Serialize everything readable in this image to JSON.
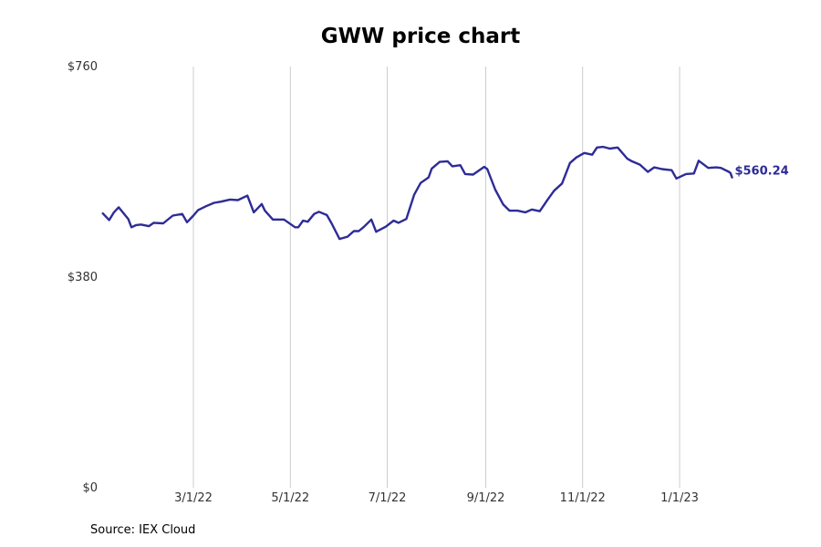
{
  "title": "GWW price chart",
  "source": "Source: IEX Cloud",
  "colors": {
    "line": "#2e2b96",
    "grid": "#c0c0c0",
    "tick_text": "#333333"
  },
  "chart_data": {
    "type": "line",
    "title": "GWW price chart",
    "xlabel": "",
    "ylabel": "",
    "ylim": [
      0,
      760
    ],
    "yticks": [
      {
        "value": 0,
        "label": "$0"
      },
      {
        "value": 380,
        "label": "$380"
      },
      {
        "value": 760,
        "label": "$760"
      }
    ],
    "xlim": [
      "2022-01-03",
      "2023-02-28"
    ],
    "xticks": [
      {
        "date": "2022-03-01",
        "label": "3/1/22"
      },
      {
        "date": "2022-05-01",
        "label": "5/1/22"
      },
      {
        "date": "2022-07-01",
        "label": "7/1/22"
      },
      {
        "date": "2022-09-01",
        "label": "9/1/22"
      },
      {
        "date": "2022-11-01",
        "label": "11/1/22"
      },
      {
        "date": "2023-01-01",
        "label": "1/1/23"
      }
    ],
    "grid": "vertical",
    "end_label": "$560.24",
    "series": [
      {
        "x": [
          "2022-01-03",
          "2022-01-07",
          "2022-01-10",
          "2022-01-13",
          "2022-01-19",
          "2022-01-21",
          "2022-01-24",
          "2022-01-27",
          "2022-02-01",
          "2022-02-04",
          "2022-02-10",
          "2022-02-16",
          "2022-02-22",
          "2022-02-25",
          "2022-03-01",
          "2022-03-04",
          "2022-03-09",
          "2022-03-14",
          "2022-03-18",
          "2022-03-24",
          "2022-03-29",
          "2022-04-04",
          "2022-04-08",
          "2022-04-13",
          "2022-04-15",
          "2022-04-20",
          "2022-04-27",
          "2022-05-04",
          "2022-05-06",
          "2022-05-09",
          "2022-05-12",
          "2022-05-16",
          "2022-05-19",
          "2022-05-24",
          "2022-05-27",
          "2022-06-01",
          "2022-06-06",
          "2022-06-10",
          "2022-06-13",
          "2022-06-16",
          "2022-06-21",
          "2022-06-24",
          "2022-06-30",
          "2022-07-05",
          "2022-07-08",
          "2022-07-13",
          "2022-07-18",
          "2022-07-22",
          "2022-07-27",
          "2022-07-29",
          "2022-08-03",
          "2022-08-08",
          "2022-08-11",
          "2022-08-16",
          "2022-08-19",
          "2022-08-24",
          "2022-08-26",
          "2022-08-31",
          "2022-09-02",
          "2022-09-07",
          "2022-09-12",
          "2022-09-16",
          "2022-09-21",
          "2022-09-26",
          "2022-09-30",
          "2022-10-05",
          "2022-10-10",
          "2022-10-14",
          "2022-10-19",
          "2022-10-24",
          "2022-10-28",
          "2022-11-02",
          "2022-11-07",
          "2022-11-10",
          "2022-11-14",
          "2022-11-18",
          "2022-11-23",
          "2022-11-29",
          "2022-12-02",
          "2022-12-07",
          "2022-12-12",
          "2022-12-16",
          "2022-12-21",
          "2022-12-27",
          "2022-12-30",
          "2023-01-05",
          "2023-01-10",
          "2023-01-13",
          "2023-01-19",
          "2023-01-24",
          "2023-01-27",
          "2023-02-01",
          "2023-02-02",
          "2023-02-03"
        ],
        "values": [
          495,
          483,
          497,
          506,
          485,
          470,
          474,
          475,
          472,
          478,
          477,
          491,
          494,
          479,
          491,
          501,
          508,
          514,
          516,
          520,
          519,
          527,
          497,
          512,
          500,
          484,
          484,
          470,
          470,
          482,
          480,
          494,
          498,
          492,
          477,
          449,
          453,
          463,
          463,
          470,
          484,
          462,
          471,
          482,
          478,
          485,
          529,
          550,
          560,
          576,
          588,
          589,
          580,
          582,
          566,
          565,
          569,
          579,
          575,
          538,
          511,
          500,
          500,
          497,
          502,
          499,
          520,
          536,
          549,
          586,
          596,
          604,
          601,
          614,
          615,
          612,
          614,
          594,
          589,
          583,
          570,
          578,
          575,
          573,
          558,
          566,
          567,
          590,
          577,
          578,
          577,
          570,
          568,
          560
        ]
      }
    ]
  }
}
